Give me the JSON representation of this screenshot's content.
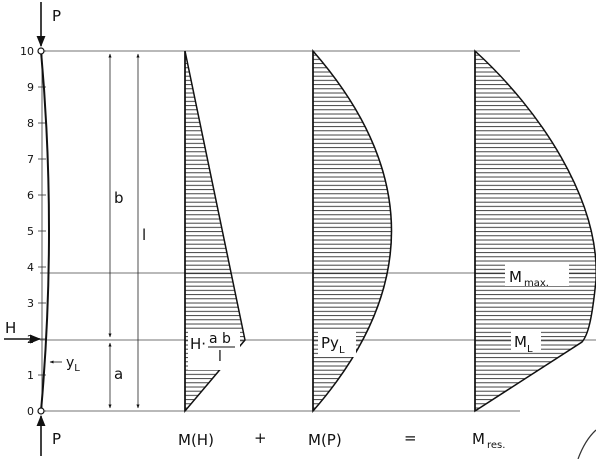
{
  "loads": {
    "top": "P",
    "bottom": "P",
    "horizontal": "H"
  },
  "column": {
    "ticks": [
      "0",
      "1",
      "2",
      "3",
      "4",
      "5",
      "6",
      "7",
      "8",
      "9",
      "10"
    ],
    "deflection_label": "y",
    "deflection_sub": "L"
  },
  "dims": {
    "b": "b",
    "a": "a",
    "l": "l"
  },
  "diagrams": {
    "mh": {
      "label_pre": "H·",
      "label_num": "a b",
      "label_den": "l",
      "caption": "M(H)"
    },
    "plus": "+",
    "mp": {
      "label_main": "Py",
      "label_sub": "L",
      "caption": "M(P)"
    },
    "equals": "=",
    "mres": {
      "max_main": "M",
      "max_sub": "max.",
      "l_main": "M",
      "l_sub": "L",
      "caption_main": "M",
      "caption_sub": "res."
    }
  }
}
